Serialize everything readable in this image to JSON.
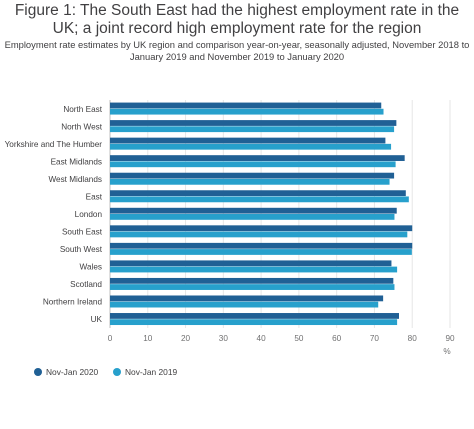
{
  "chart_data": {
    "type": "bar",
    "orientation": "horizontal",
    "title": "Figure 1: The South East had the highest employment rate in the UK; a joint record high employment rate for the region",
    "subtitle": "Employment rate estimates by UK region and comparison year-on-year, seasonally adjusted, November 2018 to January 2019 and November 2019 to January 2020",
    "categories": [
      "North East",
      "North West",
      "Yorkshire and The Humber",
      "East Midlands",
      "West Midlands",
      "East",
      "London",
      "South East",
      "South West",
      "Wales",
      "Scotland",
      "Northern Ireland",
      "UK"
    ],
    "series": [
      {
        "name": "Nov-Jan 2020",
        "color": "#206095",
        "values": [
          71.8,
          75.8,
          72.9,
          78.0,
          75.2,
          78.3,
          75.9,
          80.0,
          80.0,
          74.5,
          75.0,
          72.3,
          76.5
        ]
      },
      {
        "name": "Nov-Jan 2019",
        "color": "#27a0cc",
        "values": [
          72.4,
          75.2,
          74.4,
          75.6,
          74.0,
          79.1,
          75.3,
          78.7,
          79.9,
          76.0,
          75.3,
          71.0,
          76.0
        ]
      }
    ],
    "xlim": [
      0,
      90
    ],
    "xticks": [
      0,
      10,
      20,
      30,
      40,
      50,
      60,
      70,
      80,
      90
    ],
    "xlabel": "%",
    "ylabel": "",
    "grid": true,
    "legend": "bottom-left"
  }
}
